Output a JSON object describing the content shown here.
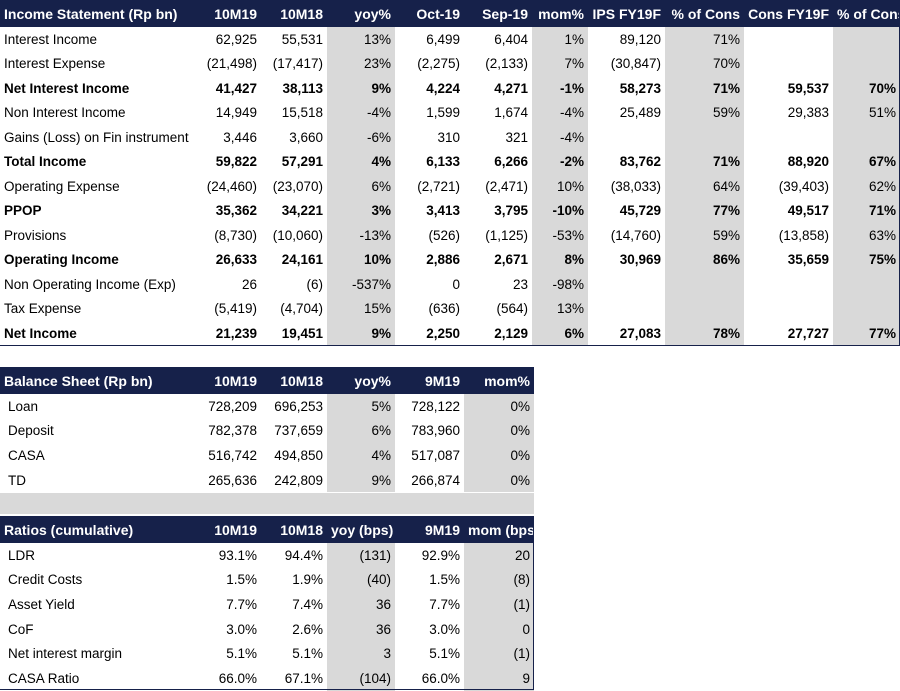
{
  "income": {
    "headers": [
      "Income Statement (Rp bn)",
      "10M19",
      "10M18",
      "yoy%",
      "Oct-19",
      "Sep-19",
      "mom%",
      "IPS FY19F",
      "% of Cons",
      "Cons FY19F",
      "% of Cons"
    ],
    "rows": [
      {
        "bold": false,
        "cells": [
          "Interest Income",
          "62,925",
          "55,531",
          "13%",
          "6,499",
          "6,404",
          "1%",
          "89,120",
          "71%",
          "",
          ""
        ]
      },
      {
        "bold": false,
        "cells": [
          "Interest Expense",
          "(21,498)",
          "(17,417)",
          "23%",
          "(2,275)",
          "(2,133)",
          "7%",
          "(30,847)",
          "70%",
          "",
          ""
        ]
      },
      {
        "bold": true,
        "cells": [
          "Net Interest Income",
          "41,427",
          "38,113",
          "9%",
          "4,224",
          "4,271",
          "-1%",
          "58,273",
          "71%",
          "59,537",
          "70%"
        ]
      },
      {
        "bold": false,
        "cells": [
          "Non Interest Income",
          "14,949",
          "15,518",
          "-4%",
          "1,599",
          "1,674",
          "-4%",
          "25,489",
          "59%",
          "29,383",
          "51%"
        ]
      },
      {
        "bold": false,
        "cells": [
          "Gains (Loss) on Fin instrument",
          "3,446",
          "3,660",
          "-6%",
          "310",
          "321",
          "-4%",
          "",
          "",
          "",
          ""
        ]
      },
      {
        "bold": true,
        "cells": [
          "Total Income",
          "59,822",
          "57,291",
          "4%",
          "6,133",
          "6,266",
          "-2%",
          "83,762",
          "71%",
          "88,920",
          "67%"
        ]
      },
      {
        "bold": false,
        "cells": [
          "Operating Expense",
          "(24,460)",
          "(23,070)",
          "6%",
          "(2,721)",
          "(2,471)",
          "10%",
          "(38,033)",
          "64%",
          "(39,403)",
          "62%"
        ]
      },
      {
        "bold": true,
        "cells": [
          "PPOP",
          "35,362",
          "34,221",
          "3%",
          "3,413",
          "3,795",
          "-10%",
          "45,729",
          "77%",
          "49,517",
          "71%"
        ]
      },
      {
        "bold": false,
        "cells": [
          "Provisions",
          "(8,730)",
          "(10,060)",
          "-13%",
          "(526)",
          "(1,125)",
          "-53%",
          "(14,760)",
          "59%",
          "(13,858)",
          "63%"
        ]
      },
      {
        "bold": true,
        "cells": [
          "Operating Income",
          "26,633",
          "24,161",
          "10%",
          "2,886",
          "2,671",
          "8%",
          "30,969",
          "86%",
          "35,659",
          "75%"
        ]
      },
      {
        "bold": false,
        "cells": [
          "Non Operating Income (Exp)",
          "26",
          "(6)",
          "-537%",
          "0",
          "23",
          "-98%",
          "",
          "",
          "",
          ""
        ]
      },
      {
        "bold": false,
        "cells": [
          "Tax Expense",
          "(5,419)",
          "(4,704)",
          "15%",
          "(636)",
          "(564)",
          "13%",
          "",
          "",
          "",
          ""
        ]
      },
      {
        "bold": true,
        "cells": [
          "Net Income",
          "21,239",
          "19,451",
          "9%",
          "2,250",
          "2,129",
          "6%",
          "27,083",
          "78%",
          "27,727",
          "77%"
        ]
      }
    ]
  },
  "balance": {
    "headers": [
      "Balance Sheet (Rp bn)",
      "10M19",
      "10M18",
      "yoy%",
      "9M19",
      "mom%"
    ],
    "rows": [
      {
        "cells": [
          "Loan",
          "728,209",
          "696,253",
          "5%",
          "728,122",
          "0%"
        ]
      },
      {
        "cells": [
          "Deposit",
          "782,378",
          "737,659",
          "6%",
          "783,960",
          "0%"
        ]
      },
      {
        "cells": [
          "CASA",
          "516,742",
          "494,850",
          "4%",
          "517,087",
          "0%"
        ]
      },
      {
        "cells": [
          "TD",
          "265,636",
          "242,809",
          "9%",
          "266,874",
          "0%"
        ]
      }
    ]
  },
  "ratios": {
    "headers": [
      "Ratios (cumulative)",
      "10M19",
      "10M18",
      "yoy (bps)",
      "9M19",
      "mom (bps)"
    ],
    "rows": [
      {
        "cells": [
          "LDR",
          "93.1%",
          "94.4%",
          "(131)",
          "92.9%",
          "20"
        ]
      },
      {
        "cells": [
          "Credit Costs",
          "1.5%",
          "1.9%",
          "(40)",
          "1.5%",
          "(8)"
        ]
      },
      {
        "cells": [
          "Asset Yield",
          "7.7%",
          "7.4%",
          "36",
          "7.7%",
          "(1)"
        ]
      },
      {
        "cells": [
          "CoF",
          "3.0%",
          "2.6%",
          "36",
          "3.0%",
          "0"
        ]
      },
      {
        "cells": [
          "Net interest margin",
          "5.1%",
          "5.1%",
          "3",
          "5.1%",
          "(1)"
        ]
      },
      {
        "cells": [
          "CASA Ratio",
          "66.0%",
          "67.1%",
          "(104)",
          "66.0%",
          "9"
        ]
      }
    ]
  },
  "colors": {
    "header_bg": "#16214a",
    "shade": "#d9d9d9"
  }
}
